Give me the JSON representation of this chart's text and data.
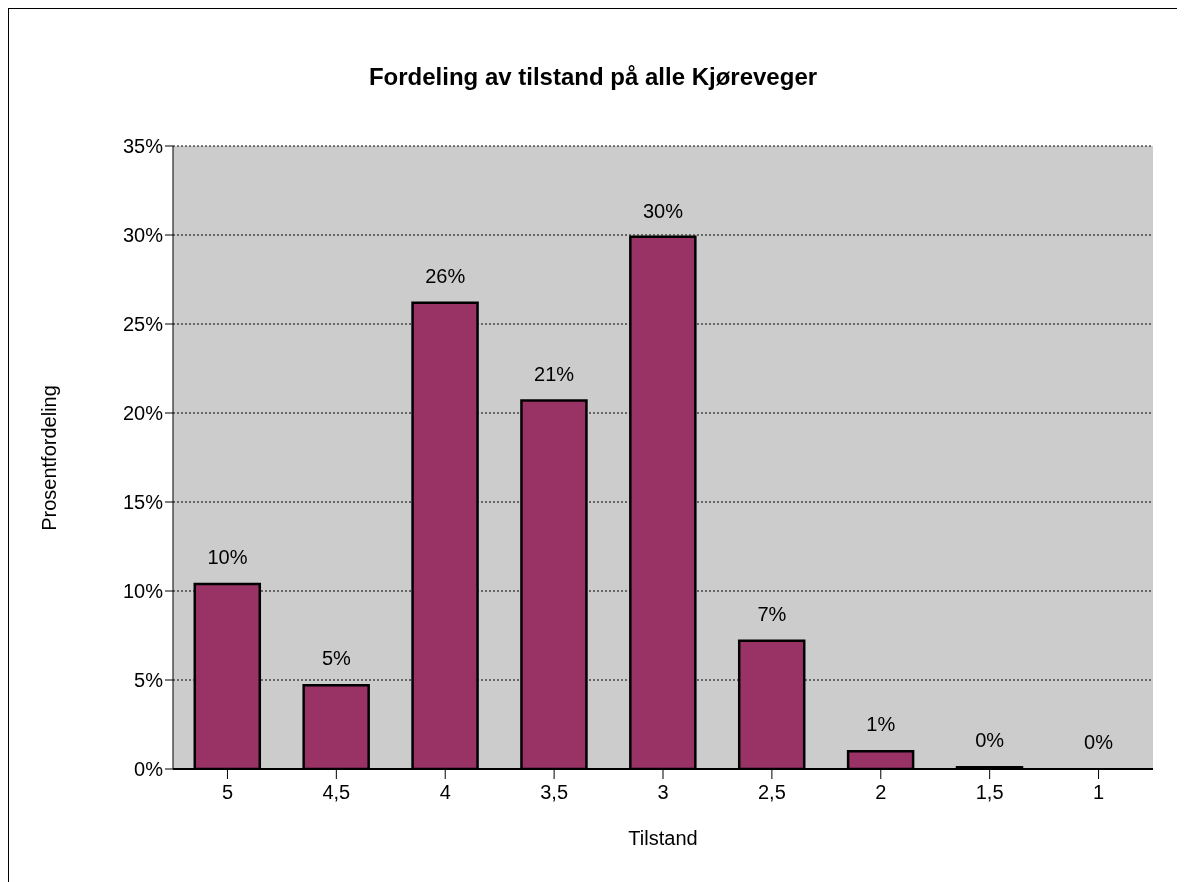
{
  "chart_data": {
    "type": "bar",
    "title": "Fordeling av tilstand på alle Kjøreveger",
    "xlabel": "Tilstand",
    "ylabel": "Prosentfordeling",
    "categories": [
      "5",
      "4,5",
      "4",
      "3,5",
      "3",
      "2,5",
      "2",
      "1,5",
      "1"
    ],
    "values": [
      10.4,
      4.7,
      26.2,
      20.7,
      29.9,
      7.2,
      1.0,
      0.1,
      0
    ],
    "value_labels": [
      "10%",
      "5%",
      "26%",
      "21%",
      "30%",
      "7%",
      "1%",
      "0%",
      "0%"
    ],
    "color": "#993366",
    "ylim": [
      0,
      35
    ],
    "yticks": [
      {
        "value": 0,
        "label": "0%"
      },
      {
        "value": 5,
        "label": "5%"
      },
      {
        "value": 10,
        "label": "10%"
      },
      {
        "value": 15,
        "label": "15%"
      },
      {
        "value": 20,
        "label": "20%"
      },
      {
        "value": 25,
        "label": "25%"
      },
      {
        "value": 30,
        "label": "30%"
      },
      {
        "value": 35,
        "label": "35%"
      }
    ],
    "grid": "y",
    "legend": false
  }
}
